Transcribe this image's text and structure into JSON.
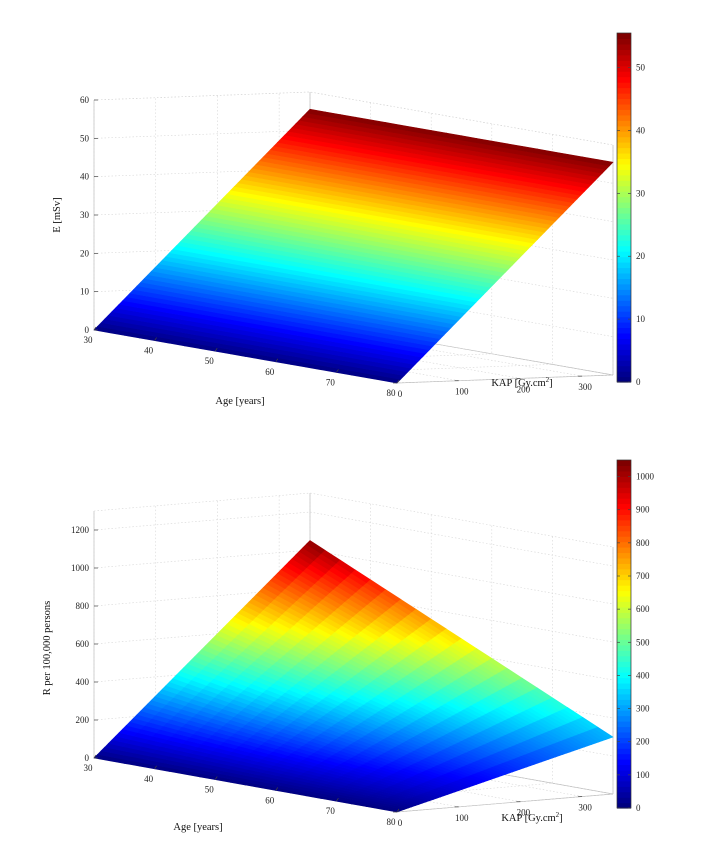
{
  "chart_data": [
    {
      "type": "surface",
      "zlabel": "E [mSv]",
      "xlabel": "Age [years]",
      "ylabel_main": "KAP [Gy.cm",
      "ylabel_sup": "2",
      "ylabel_end": "]",
      "x_ticks": [
        "30",
        "40",
        "50",
        "60",
        "70",
        "80"
      ],
      "y_ticks": [
        "0",
        "100",
        "200",
        "300"
      ],
      "z_ticks": [
        "0",
        "10",
        "20",
        "30",
        "40",
        "50",
        "60"
      ],
      "colorbar_ticks": [
        "0",
        "10",
        "20",
        "30",
        "40",
        "50"
      ],
      "xlim": [
        30,
        80
      ],
      "ylim": [
        0,
        350
      ],
      "zlim": [
        0,
        60
      ],
      "clim": [
        0,
        55.5
      ],
      "colormap": "jet",
      "surface_corners": [
        {
          "age": 30,
          "kap": 0,
          "value": 0
        },
        {
          "age": 80,
          "kap": 0,
          "value": 0
        },
        {
          "age": 30,
          "kap": 350,
          "value": 55.5
        },
        {
          "age": 80,
          "kap": 350,
          "value": 55.5
        }
      ]
    },
    {
      "type": "surface",
      "zlabel": "R per 100,000 persons",
      "xlabel": "Age [years]",
      "ylabel_main": "KAP [Gy.cm",
      "ylabel_sup": "2",
      "ylabel_end": "]",
      "x_ticks": [
        "30",
        "40",
        "50",
        "60",
        "70",
        "80"
      ],
      "y_ticks": [
        "0",
        "100",
        "200",
        "300"
      ],
      "z_ticks": [
        "0",
        "200",
        "400",
        "600",
        "800",
        "1000",
        "1200"
      ],
      "colorbar_ticks": [
        "0",
        "100",
        "200",
        "300",
        "400",
        "500",
        "600",
        "700",
        "800",
        "900",
        "1000"
      ],
      "xlim": [
        30,
        80
      ],
      "ylim": [
        0,
        350
      ],
      "zlim": [
        0,
        1300
      ],
      "clim": [
        0,
        1050
      ],
      "colormap": "jet",
      "surface_corners": [
        {
          "age": 30,
          "kap": 0,
          "value": 0
        },
        {
          "age": 80,
          "kap": 0,
          "value": 0
        },
        {
          "age": 30,
          "kap": 350,
          "value": 1050
        },
        {
          "age": 80,
          "kap": 350,
          "value": 300
        }
      ]
    }
  ]
}
